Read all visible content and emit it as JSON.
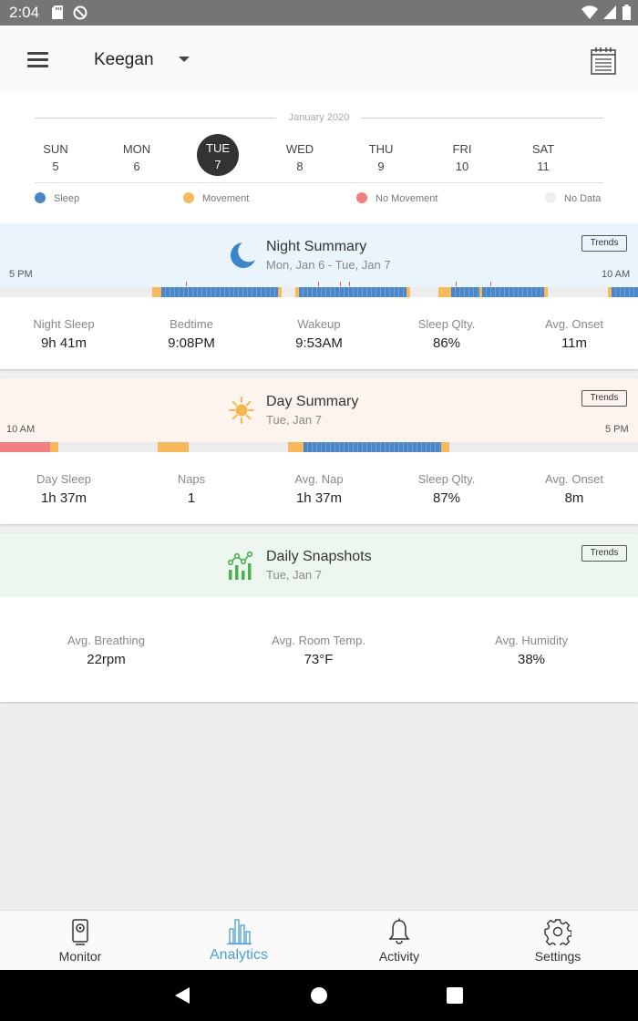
{
  "status_bar": {
    "time": "2:04"
  },
  "app_bar": {
    "profile_name": "Keegan"
  },
  "week": {
    "month": "January 2020",
    "days": [
      {
        "name": "SUN",
        "date": "5"
      },
      {
        "name": "MON",
        "date": "6"
      },
      {
        "name": "TUE",
        "date": "7"
      },
      {
        "name": "WED",
        "date": "8"
      },
      {
        "name": "THU",
        "date": "9"
      },
      {
        "name": "FRI",
        "date": "10"
      },
      {
        "name": "SAT",
        "date": "11"
      }
    ],
    "selected_day": "TUE",
    "legend": [
      {
        "label": "Sleep",
        "color": "#4a86c8"
      },
      {
        "label": "Movement",
        "color": "#f8b95c"
      },
      {
        "label": "No Movement",
        "color": "#f27f7f"
      },
      {
        "label": "No Data",
        "color": "#eeeeee"
      }
    ]
  },
  "night_summary": {
    "title": "Night Summary",
    "subtitle": "Mon, Jan 6 - Tue, Jan 7",
    "trends_label": "Trends",
    "start_label": "5 PM",
    "end_label": "10 AM",
    "stats": [
      {
        "label": "Night Sleep",
        "value": "9h 41m"
      },
      {
        "label": "Bedtime",
        "value": "9:08PM"
      },
      {
        "label": "Wakeup",
        "value": "9:53AM"
      },
      {
        "label": "Sleep Qlty.",
        "value": "86%"
      },
      {
        "label": "Avg. Onset",
        "value": "11m"
      }
    ]
  },
  "day_summary": {
    "title": "Day Summary",
    "subtitle": "Tue, Jan 7",
    "trends_label": "Trends",
    "start_label": "10 AM",
    "end_label": "5 PM",
    "stats": [
      {
        "label": "Day Sleep",
        "value": "1h 37m"
      },
      {
        "label": "Naps",
        "value": "1"
      },
      {
        "label": "Avg. Nap",
        "value": "1h 37m"
      },
      {
        "label": "Sleep Qlty.",
        "value": "87%"
      },
      {
        "label": "Avg. Onset",
        "value": "8m"
      }
    ]
  },
  "daily_snapshots": {
    "title": "Daily Snapshots",
    "subtitle": "Tue, Jan 7",
    "trends_label": "Trends",
    "stats": [
      {
        "label": "Avg. Breathing",
        "value": "22rpm"
      },
      {
        "label": "Avg. Room Temp.",
        "value": "73°F"
      },
      {
        "label": "Avg. Humidity",
        "value": "38%"
      }
    ]
  },
  "bottom_nav": {
    "items": [
      {
        "label": "Monitor",
        "icon": "camera-icon"
      },
      {
        "label": "Analytics",
        "icon": "bar-chart-icon"
      },
      {
        "label": "Activity",
        "icon": "bell-icon"
      },
      {
        "label": "Settings",
        "icon": "gear-icon"
      }
    ],
    "active": "Analytics",
    "active_color": "#4a9fd6"
  },
  "colors": {
    "night_header": "#eaf4fd",
    "day_header": "#fdf4ef",
    "snapshot_header": "#eef7ef",
    "moon": "#3b86c8",
    "sun": "#f6b74e",
    "snapshot_icon": "#4caf50"
  }
}
